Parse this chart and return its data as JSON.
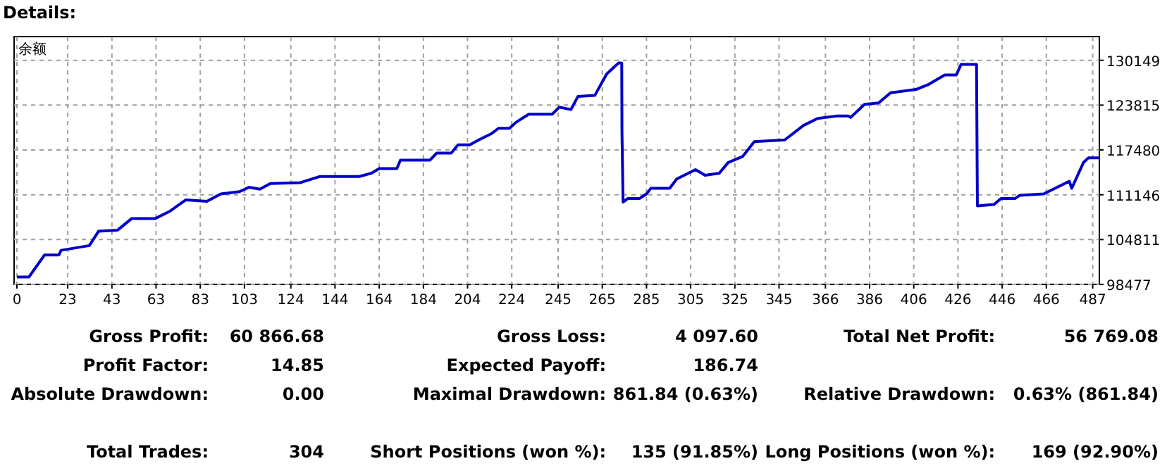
{
  "chart_data": {
    "type": "line",
    "title": "Details:",
    "ylabel": "余额",
    "grid": true,
    "marker": "none",
    "line_style": "solid",
    "xlim": [
      0,
      490
    ],
    "ylim": [
      98477,
      133500
    ],
    "xticks": [
      0,
      23,
      43,
      63,
      83,
      103,
      124,
      144,
      164,
      184,
      204,
      224,
      245,
      265,
      285,
      305,
      325,
      345,
      366,
      386,
      406,
      426,
      446,
      466,
      487
    ],
    "yticks": [
      98477,
      104811,
      111146,
      117480,
      123815,
      130149
    ],
    "series": [
      {
        "color": "#0000c8",
        "x": [
          0,
          5.5,
          12.5,
          19,
          20,
          32.8,
          37,
          45.5,
          51.9,
          62.5,
          69,
          76.4,
          86,
          92.3,
          100.8,
          105,
          110,
          114.7,
          128.4,
          137,
          155,
          160.4,
          164,
          172,
          173.6,
          187,
          190,
          196.6,
          199.7,
          205,
          209.4,
          214.6,
          218,
          223,
          226,
          231.7,
          242.3,
          245.5,
          250.8,
          254,
          261.6,
          267,
          272.3,
          273.8,
          273.9,
          274.4,
          276.5,
          281.8,
          285,
          287,
          295.5,
          298.7,
          307.2,
          311.5,
          317.9,
          322,
          328.5,
          333.8,
          347.6,
          356.1,
          362.5,
          371,
          376.4,
          377.4,
          383.7,
          390.1,
          395.5,
          407,
          412.4,
          420,
          425.2,
          427.4,
          434.4,
          434.8,
          442.3,
          445.5,
          451.8,
          454,
          464.8,
          476.4,
          477.5,
          478,
          482.8,
          485,
          490
        ],
        "values": [
          99527,
          99527,
          102630,
          102630,
          103290,
          103960,
          106000,
          106130,
          107770,
          107770,
          108770,
          110410,
          110210,
          111260,
          111590,
          112200,
          111940,
          112730,
          112860,
          113720,
          113720,
          114180,
          114850,
          114850,
          116040,
          116040,
          117030,
          117030,
          118210,
          118210,
          118950,
          119740,
          120540,
          120540,
          121400,
          122530,
          122530,
          123520,
          123190,
          125050,
          125180,
          128220,
          129760,
          129760,
          120000,
          110100,
          110610,
          110610,
          111260,
          112060,
          112060,
          113380,
          114700,
          113900,
          114180,
          115700,
          116540,
          118640,
          118900,
          120950,
          121940,
          122270,
          122270,
          122070,
          123920,
          124120,
          125570,
          126030,
          126690,
          128070,
          128070,
          129560,
          129560,
          109570,
          109770,
          110610,
          110610,
          111070,
          111260,
          113050,
          112060,
          112400,
          115690,
          116350,
          116350
        ]
      }
    ],
    "annotations": [
      "Gross Profit:",
      "60 866.68",
      "Gross Loss:",
      "4 097.60",
      "Total Net Profit:",
      "56 769.08",
      "Profit Factor:",
      "14.85",
      "Expected Payoff:",
      "186.74",
      "Absolute Drawdown:",
      "0.00",
      "Maximal Drawdown:",
      "861.84 (0.63%)",
      "Relative Drawdown:",
      "0.63% (861.84)",
      "Total Trades:",
      "304",
      "Short Positions (won %):",
      "135 (91.85%)",
      "Long Positions (won %):",
      "169 (92.90%)"
    ]
  }
}
